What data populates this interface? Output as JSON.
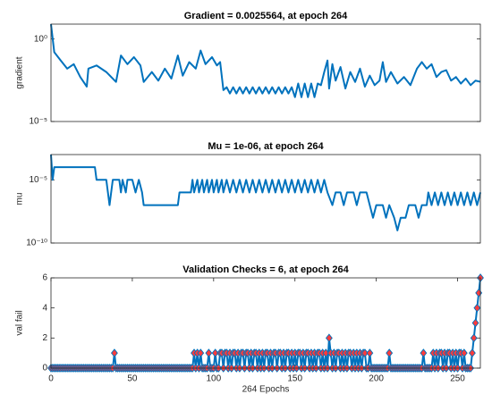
{
  "chart_data": [
    {
      "type": "line",
      "title": "Gradient = 0.0025564, at epoch 264",
      "y_label": "gradient",
      "log_scale": true,
      "color": "#0072bd",
      "xlim": [
        0,
        264
      ],
      "ylim": [
        1e-05,
        8
      ],
      "yticks": [
        {
          "value": 1e-05,
          "label": "10⁻⁵"
        },
        {
          "value": 1,
          "label": "10⁰"
        }
      ],
      "x": [
        0,
        2,
        6,
        10,
        14,
        18,
        22,
        23,
        28,
        34,
        40,
        43,
        47,
        51,
        55,
        57,
        62,
        66,
        70,
        74,
        78,
        81,
        85,
        89,
        92,
        95,
        99,
        102,
        104,
        106,
        108,
        110,
        112,
        114,
        116,
        118,
        120,
        122,
        124,
        126,
        128,
        130,
        132,
        134,
        136,
        138,
        140,
        142,
        144,
        146,
        148,
        150,
        152,
        154,
        156,
        158,
        160,
        162,
        164,
        166,
        168,
        170,
        171,
        173,
        175,
        178,
        181,
        184,
        187,
        190,
        193,
        196,
        199,
        202,
        204,
        206,
        209,
        213,
        217,
        221,
        225,
        228,
        231,
        234,
        237,
        240,
        243,
        246,
        249,
        252,
        255,
        258,
        261,
        264
      ],
      "values": [
        8,
        0.16,
        0.05,
        0.016,
        0.03,
        0.005,
        0.0013,
        0.016,
        0.025,
        0.01,
        0.0025,
        0.1,
        0.03,
        0.08,
        0.025,
        0.0025,
        0.01,
        0.003,
        0.016,
        0.004,
        0.1,
        0.006,
        0.04,
        0.016,
        0.2,
        0.03,
        0.08,
        0.025,
        0.04,
        0.0008,
        0.0012,
        0.0005,
        0.0012,
        0.0005,
        0.0012,
        0.0005,
        0.0012,
        0.0005,
        0.0012,
        0.0005,
        0.0012,
        0.0005,
        0.0012,
        0.0005,
        0.0012,
        0.0005,
        0.0012,
        0.0005,
        0.0012,
        0.0005,
        0.0012,
        0.0003,
        0.002,
        0.0003,
        0.002,
        0.0003,
        0.002,
        0.0003,
        0.002,
        0.0016,
        0.01,
        0.05,
        0.001,
        0.03,
        0.003,
        0.02,
        0.001,
        0.01,
        0.0025,
        0.016,
        0.0013,
        0.006,
        0.0016,
        0.003,
        0.04,
        0.0025,
        0.01,
        0.002,
        0.005,
        0.0016,
        0.016,
        0.04,
        0.016,
        0.03,
        0.005,
        0.01,
        0.013,
        0.003,
        0.005,
        0.002,
        0.004,
        0.0016,
        0.003,
        0.0025564
      ]
    },
    {
      "type": "line",
      "title": "Mu = 1e-06, at epoch 264",
      "y_label": "mu",
      "log_scale": true,
      "color": "#0072bd",
      "xlim": [
        0,
        264
      ],
      "ylim": [
        1e-10,
        0.001
      ],
      "yticks": [
        {
          "value": 1e-10,
          "label": "10⁻¹⁰"
        },
        {
          "value": 1e-05,
          "label": "10⁻⁵"
        }
      ],
      "x": [
        0,
        1,
        2,
        27,
        28,
        34,
        35,
        36,
        37,
        38,
        42,
        43,
        44,
        46,
        47,
        50,
        52,
        54,
        56,
        57,
        78,
        79,
        86,
        87,
        88,
        90,
        91,
        93,
        94,
        96,
        97,
        99,
        100,
        102,
        103,
        105,
        106,
        108,
        110,
        112,
        114,
        116,
        118,
        120,
        122,
        124,
        126,
        128,
        130,
        132,
        134,
        136,
        138,
        140,
        142,
        144,
        146,
        148,
        150,
        152,
        154,
        156,
        158,
        160,
        162,
        164,
        166,
        168,
        170,
        173,
        175,
        178,
        180,
        182,
        186,
        188,
        190,
        194,
        196,
        198,
        200,
        204,
        206,
        208,
        211,
        213,
        215,
        218,
        220,
        224,
        226,
        228,
        231,
        232,
        234,
        236,
        238,
        240,
        242,
        244,
        246,
        248,
        250,
        252,
        254,
        256,
        258,
        260,
        262,
        264
      ],
      "values": [
        0.001,
        1e-05,
        0.0001,
        0.0001,
        1e-05,
        1e-05,
        1e-06,
        1e-07,
        1e-06,
        1e-05,
        1e-05,
        1e-06,
        1e-05,
        1e-06,
        1e-05,
        1e-05,
        1e-06,
        1e-05,
        1e-06,
        1e-07,
        1e-07,
        1e-06,
        1e-06,
        1e-05,
        1e-06,
        1e-05,
        1e-06,
        1e-05,
        1e-06,
        1e-05,
        1e-06,
        1e-05,
        1e-06,
        1e-05,
        1e-06,
        1e-05,
        1e-06,
        1e-05,
        1e-06,
        1e-05,
        1e-06,
        1e-05,
        1e-06,
        1e-05,
        1e-06,
        1e-05,
        1e-06,
        1e-05,
        1e-06,
        1e-05,
        1e-06,
        1e-05,
        1e-06,
        1e-05,
        1e-06,
        1e-05,
        1e-06,
        1e-05,
        1e-06,
        1e-05,
        1e-06,
        1e-05,
        1e-06,
        1e-05,
        1e-06,
        1e-05,
        1e-06,
        1e-05,
        1e-06,
        1e-07,
        1e-06,
        1e-06,
        1e-07,
        1e-06,
        1e-06,
        1e-07,
        1e-06,
        1e-06,
        1e-07,
        1e-08,
        1e-07,
        1e-07,
        1e-08,
        1e-07,
        1e-08,
        1e-09,
        1e-08,
        1e-08,
        1e-07,
        1e-07,
        1e-08,
        1e-07,
        1e-07,
        1e-06,
        1e-07,
        1e-06,
        1e-07,
        1e-06,
        1e-07,
        1e-06,
        1e-07,
        1e-06,
        1e-07,
        1e-06,
        1e-07,
        1e-06,
        1e-07,
        1e-06,
        1e-07,
        1e-06
      ]
    },
    {
      "type": "line",
      "title": "Validation Checks = 6, at epoch 264",
      "y_label": "val fail",
      "x_label": "264 Epochs",
      "log_scale": false,
      "color": "#0072bd",
      "marker": "diamond",
      "marker_color": "#ff3b3b",
      "xlim": [
        0,
        264
      ],
      "ylim": [
        0,
        6
      ],
      "yticks": [
        0,
        2,
        4,
        6
      ],
      "xticks": [
        0,
        50,
        100,
        150,
        200,
        250
      ],
      "x": [
        0,
        1,
        2,
        3,
        4,
        5,
        6,
        7,
        8,
        9,
        10,
        11,
        12,
        13,
        14,
        15,
        16,
        17,
        18,
        19,
        20,
        21,
        22,
        23,
        24,
        25,
        26,
        27,
        28,
        29,
        30,
        31,
        32,
        33,
        34,
        35,
        36,
        37,
        38,
        39,
        40,
        41,
        42,
        43,
        44,
        45,
        46,
        47,
        48,
        49,
        50,
        51,
        52,
        53,
        54,
        55,
        56,
        57,
        58,
        59,
        60,
        61,
        62,
        63,
        64,
        65,
        66,
        67,
        68,
        69,
        70,
        71,
        72,
        73,
        74,
        75,
        76,
        77,
        78,
        79,
        80,
        81,
        82,
        83,
        84,
        85,
        86,
        87,
        88,
        89,
        90,
        91,
        92,
        93,
        94,
        95,
        96,
        97,
        98,
        99,
        100,
        101,
        102,
        103,
        104,
        105,
        106,
        107,
        108,
        109,
        110,
        111,
        112,
        113,
        114,
        115,
        116,
        117,
        118,
        119,
        120,
        121,
        122,
        123,
        124,
        125,
        126,
        127,
        128,
        129,
        130,
        131,
        132,
        133,
        134,
        135,
        136,
        137,
        138,
        139,
        140,
        141,
        142,
        143,
        144,
        145,
        146,
        147,
        148,
        149,
        150,
        151,
        152,
        153,
        154,
        155,
        156,
        157,
        158,
        159,
        160,
        161,
        162,
        163,
        164,
        165,
        166,
        167,
        168,
        169,
        170,
        171,
        172,
        173,
        174,
        175,
        176,
        177,
        178,
        179,
        180,
        181,
        182,
        183,
        184,
        185,
        186,
        187,
        188,
        189,
        190,
        191,
        192,
        193,
        194,
        195,
        196,
        197,
        198,
        199,
        200,
        201,
        202,
        203,
        204,
        205,
        206,
        207,
        208,
        209,
        210,
        211,
        212,
        213,
        214,
        215,
        216,
        217,
        218,
        219,
        220,
        221,
        222,
        223,
        224,
        225,
        226,
        227,
        228,
        229,
        230,
        231,
        232,
        233,
        234,
        235,
        236,
        237,
        238,
        239,
        240,
        241,
        242,
        243,
        244,
        245,
        246,
        247,
        248,
        249,
        250,
        251,
        252,
        253,
        254,
        255,
        256,
        257,
        258,
        259,
        260,
        261,
        262,
        263,
        264
      ],
      "values": [
        0,
        0,
        0,
        0,
        0,
        0,
        0,
        0,
        0,
        0,
        0,
        0,
        0,
        0,
        0,
        0,
        0,
        0,
        0,
        0,
        0,
        0,
        0,
        0,
        0,
        0,
        0,
        0,
        0,
        0,
        0,
        0,
        0,
        0,
        0,
        0,
        0,
        0,
        0,
        1,
        0,
        0,
        0,
        0,
        0,
        0,
        0,
        0,
        0,
        0,
        0,
        0,
        0,
        0,
        0,
        0,
        0,
        0,
        0,
        0,
        0,
        0,
        0,
        0,
        0,
        0,
        0,
        0,
        0,
        0,
        0,
        0,
        0,
        0,
        0,
        0,
        0,
        0,
        0,
        0,
        0,
        0,
        0,
        0,
        0,
        0,
        0,
        0,
        1,
        0,
        1,
        0,
        1,
        0,
        0,
        0,
        0,
        1,
        0,
        0,
        0,
        1,
        0,
        0,
        1,
        1,
        0,
        1,
        1,
        0,
        1,
        0,
        1,
        1,
        0,
        1,
        0,
        1,
        1,
        0,
        1,
        1,
        0,
        1,
        0,
        1,
        1,
        0,
        1,
        0,
        1,
        0,
        1,
        1,
        0,
        1,
        0,
        1,
        1,
        0,
        1,
        1,
        0,
        1,
        0,
        1,
        1,
        0,
        1,
        0,
        1,
        0,
        1,
        1,
        0,
        1,
        0,
        1,
        1,
        0,
        1,
        0,
        1,
        0,
        1,
        1,
        0,
        1,
        0,
        1,
        0,
        2,
        1,
        0,
        1,
        0,
        1,
        1,
        0,
        1,
        0,
        1,
        0,
        1,
        1,
        0,
        1,
        0,
        1,
        0,
        1,
        0,
        1,
        1,
        0,
        0,
        1,
        0,
        0,
        0,
        0,
        0,
        0,
        0,
        0,
        0,
        0,
        0,
        1,
        0,
        0,
        0,
        0,
        0,
        0,
        0,
        0,
        0,
        0,
        0,
        0,
        0,
        0,
        0,
        0,
        0,
        0,
        0,
        0,
        1,
        0,
        0,
        0,
        0,
        0,
        1,
        0,
        1,
        0,
        1,
        1,
        0,
        1,
        0,
        1,
        1,
        0,
        1,
        0,
        1,
        0,
        1,
        1,
        0,
        1,
        0,
        0,
        0,
        0,
        1,
        2,
        3,
        4,
        5,
        6
      ]
    }
  ]
}
